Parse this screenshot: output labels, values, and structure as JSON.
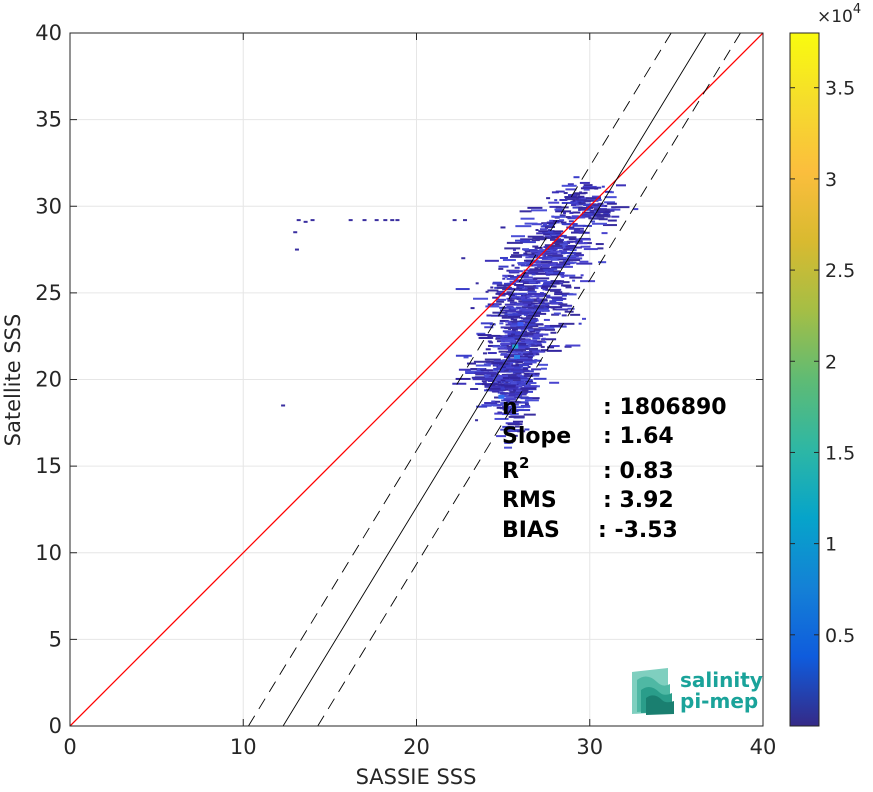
{
  "chart_data": {
    "type": "heatmap",
    "subtype": "density-scatter",
    "xlabel": "SASSIE SSS",
    "ylabel": "Satellite SSS",
    "xlim": [
      0,
      40
    ],
    "ylim": [
      0,
      40
    ],
    "xticks": [
      0,
      10,
      20,
      30,
      40
    ],
    "yticks": [
      0,
      5,
      10,
      15,
      20,
      25,
      30,
      35,
      40
    ],
    "grid": true,
    "colorbar": {
      "colormap": "parula",
      "min": 0,
      "max": 38000,
      "ticks": [
        0.5,
        1,
        1.5,
        2,
        2.5,
        3,
        3.5
      ],
      "tick_labels": [
        "0.5",
        "1",
        "1.5",
        "2",
        "2.5",
        "3",
        "3.5"
      ],
      "exponent_label": "×10",
      "exponent_power": "4"
    },
    "lines": [
      {
        "name": "one-to-one",
        "color": "#ff0000",
        "x": [
          0,
          40
        ],
        "y": [
          0,
          40
        ]
      },
      {
        "name": "regression",
        "color": "#000000",
        "style": "solid",
        "x": [
          12.3,
          36.7
        ],
        "y": [
          0,
          40
        ]
      },
      {
        "name": "regression-upper",
        "color": "#000000",
        "style": "dashed",
        "x": [
          10.3,
          34.7
        ],
        "y": [
          0,
          40
        ]
      },
      {
        "name": "regression-lower",
        "color": "#000000",
        "style": "dashed",
        "x": [
          14.3,
          38.7
        ],
        "y": [
          0,
          40
        ]
      }
    ],
    "density_clusters": [
      {
        "x": 25.5,
        "y": 19.5,
        "sx": 0.6,
        "sy": 1.2,
        "n": 220
      },
      {
        "x": 25.8,
        "y": 22.5,
        "sx": 0.9,
        "sy": 1.6,
        "n": 320
      },
      {
        "x": 26.8,
        "y": 25.0,
        "sx": 1.1,
        "sy": 1.4,
        "n": 260
      },
      {
        "x": 28.0,
        "y": 27.5,
        "sx": 1.0,
        "sy": 1.0,
        "n": 200
      },
      {
        "x": 29.8,
        "y": 30.0,
        "sx": 1.0,
        "sy": 0.6,
        "n": 140
      },
      {
        "x": 24.0,
        "y": 20.3,
        "sx": 0.6,
        "sy": 0.5,
        "n": 50
      }
    ],
    "density_highlights": [
      {
        "x": 25.7,
        "y": 21.9,
        "color": "#23a9d6"
      },
      {
        "x": 25.8,
        "y": 21.3,
        "color": "#2a7ee8"
      },
      {
        "x": 24.9,
        "y": 19.0,
        "color": "#2f6df0"
      },
      {
        "x": 26.0,
        "y": 23.2,
        "color": "#3b5bf5"
      }
    ],
    "density_sparse": [
      {
        "x": 13.2,
        "y": 29.2
      },
      {
        "x": 13.6,
        "y": 29.1
      },
      {
        "x": 14.0,
        "y": 29.2
      },
      {
        "x": 16.2,
        "y": 29.2
      },
      {
        "x": 17.0,
        "y": 29.2
      },
      {
        "x": 17.7,
        "y": 29.2
      },
      {
        "x": 18.2,
        "y": 29.2
      },
      {
        "x": 18.6,
        "y": 29.2
      },
      {
        "x": 18.9,
        "y": 29.2
      },
      {
        "x": 22.2,
        "y": 29.2
      },
      {
        "x": 22.8,
        "y": 29.2
      },
      {
        "x": 13.0,
        "y": 28.5
      },
      {
        "x": 13.1,
        "y": 27.5
      },
      {
        "x": 12.3,
        "y": 18.5
      },
      {
        "x": 22.7,
        "y": 27.0
      }
    ],
    "stats": [
      {
        "label": "n",
        "value": ": 1806890"
      },
      {
        "label": "Slope",
        "value": ": 1.64"
      },
      {
        "label": "R",
        "sup": "2",
        "value": ": 0.83"
      },
      {
        "label": "RMS",
        "value": ": 3.92"
      },
      {
        "label": "BIAS",
        "value": ": -3.53"
      }
    ]
  },
  "logo": {
    "line1": "salinity",
    "line2": "pi-mep",
    "color": "#1aa39a"
  }
}
